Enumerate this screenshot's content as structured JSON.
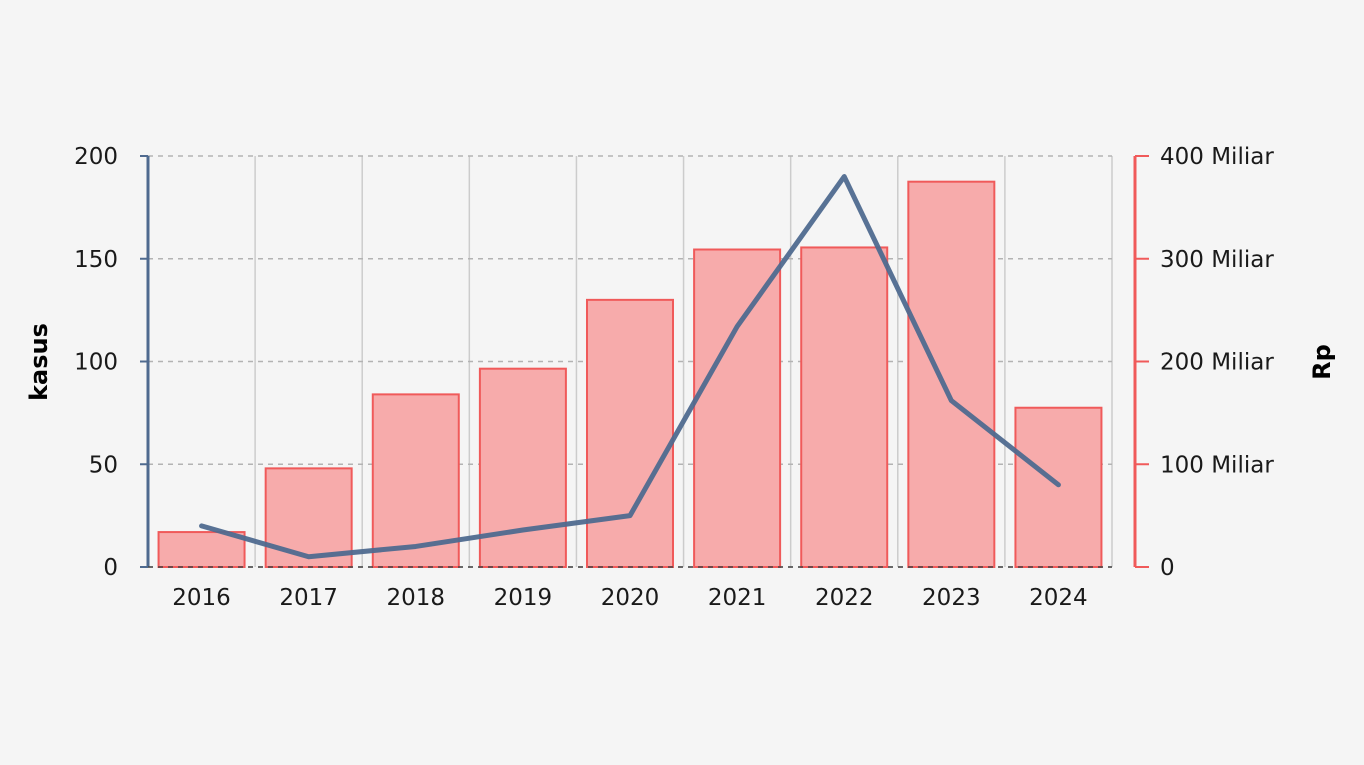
{
  "chart_data": {
    "type": "bar",
    "categories": [
      "2016",
      "2017",
      "2018",
      "2019",
      "2020",
      "2021",
      "2022",
      "2023",
      "2024"
    ],
    "series": [
      {
        "type": "line",
        "axis": "left",
        "values": [
          20,
          5,
          10,
          18,
          25,
          117,
          190,
          81,
          40
        ]
      },
      {
        "type": "bar",
        "axis": "right",
        "values": [
          34,
          96,
          168,
          193,
          260,
          309,
          311,
          375,
          155
        ]
      }
    ],
    "left_axis": {
      "title": "kasus",
      "range": [
        0,
        200
      ],
      "ticks": [
        {
          "value": 0,
          "label": "0"
        },
        {
          "value": 50,
          "label": "50"
        },
        {
          "value": 100,
          "label": "100"
        },
        {
          "value": 150,
          "label": "150"
        },
        {
          "value": 200,
          "label": "200"
        }
      ]
    },
    "right_axis": {
      "title": "Rp",
      "range": [
        0,
        400
      ],
      "ticks": [
        {
          "value": 0,
          "label": "0"
        },
        {
          "value": 100,
          "label": "100 Miliar"
        },
        {
          "value": 200,
          "label": "200 Miliar"
        },
        {
          "value": 300,
          "label": "300 Miliar"
        },
        {
          "value": 400,
          "label": "400 Miliar"
        }
      ]
    },
    "grid": true,
    "legend": "none",
    "colors": {
      "line": "#4f6a8f",
      "bar_fill": "#f7abab",
      "bar_stroke": "#f05a5a",
      "left_axis": "#4f6a8f",
      "right_axis": "#f05a5a",
      "grid": "#b3b3b3",
      "vgrid": "#cccccc"
    }
  }
}
